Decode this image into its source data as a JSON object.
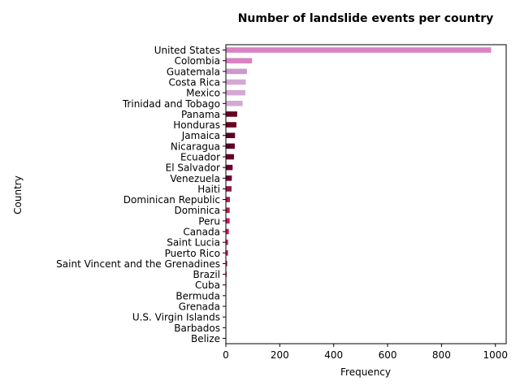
{
  "chart_data": {
    "type": "bar",
    "orientation": "horizontal",
    "title": "Number of landslide events per country",
    "xlabel": "Frequency",
    "ylabel": "Country",
    "xlim": [
      0,
      1040
    ],
    "xticks": [
      0,
      200,
      400,
      600,
      800,
      1000
    ],
    "grid": false,
    "categories": [
      "United States",
      "Colombia",
      "Guatemala",
      "Costa Rica",
      "Mexico",
      "Trinidad and Tobago",
      "Panama",
      "Honduras",
      "Jamaica",
      "Nicaragua",
      "Ecuador",
      "El Salvador",
      "Venezuela",
      "Haiti",
      "Dominican Republic",
      "Dominica",
      "Peru",
      "Canada",
      "Saint Lucia",
      "Puerto Rico",
      "Saint Vincent and the Grenadines",
      "Brazil",
      "Cuba",
      "Bermuda",
      "Grenada",
      "U.S. Virgin Islands",
      "Barbados",
      "Belize"
    ],
    "values": [
      984,
      97,
      78,
      74,
      72,
      62,
      42,
      39,
      34,
      33,
      30,
      25,
      22,
      21,
      15,
      14,
      14,
      11,
      8,
      8,
      5,
      3,
      2,
      1,
      1,
      1,
      1,
      1
    ],
    "colors": [
      "#d982c1",
      "#d982c1",
      "#cc99cc",
      "#d4a8d4",
      "#d4a8d4",
      "#d4a8d4",
      "#660022",
      "#660022",
      "#5c0026",
      "#5c0026",
      "#660026",
      "#6b0033",
      "#6b0033",
      "#8a1a40",
      "#b01c4a",
      "#b01c4a",
      "#c2185b",
      "#c2185b",
      "#c2185b",
      "#c2185b",
      "#c2185b",
      "#c2185b",
      "#c2185b",
      "#c2185b",
      "#c2185b",
      "#c2185b",
      "#c2185b",
      "#c2185b"
    ]
  }
}
